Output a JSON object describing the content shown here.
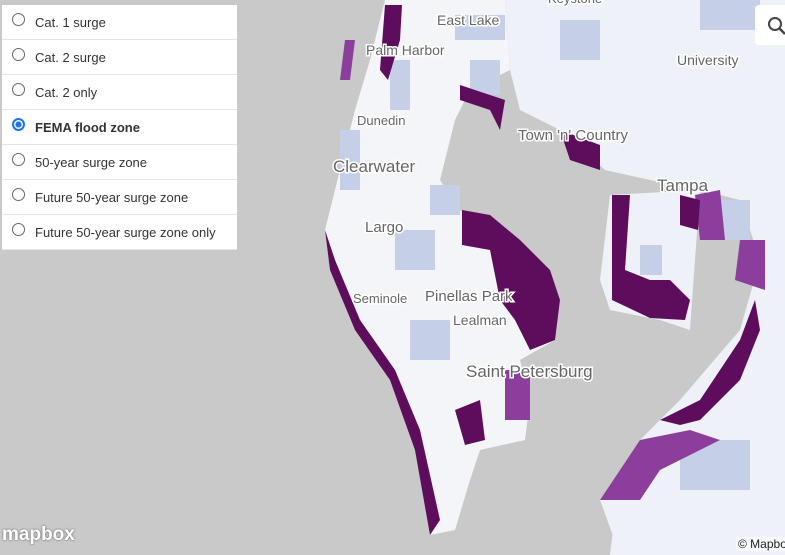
{
  "layer_panel": {
    "options": [
      "Cat. 1 surge",
      "Cat. 2 surge",
      "Cat. 2 only",
      "FEMA flood zone",
      "50-year surge zone",
      "Future 50-year surge zone",
      "Future 50-year surge zone only"
    ],
    "selected": 3
  },
  "map": {
    "labels": [
      "Keystone",
      "East Lake",
      "Palm Harbor",
      "University",
      "Dunedin",
      "Town 'n' Country",
      "Clearwater",
      "Tampa",
      "Largo",
      "Seminole",
      "Pinellas Park",
      "Lealman",
      "Saint Petersburg"
    ],
    "logo": "mapbox",
    "attribution": "© Mapbox"
  }
}
